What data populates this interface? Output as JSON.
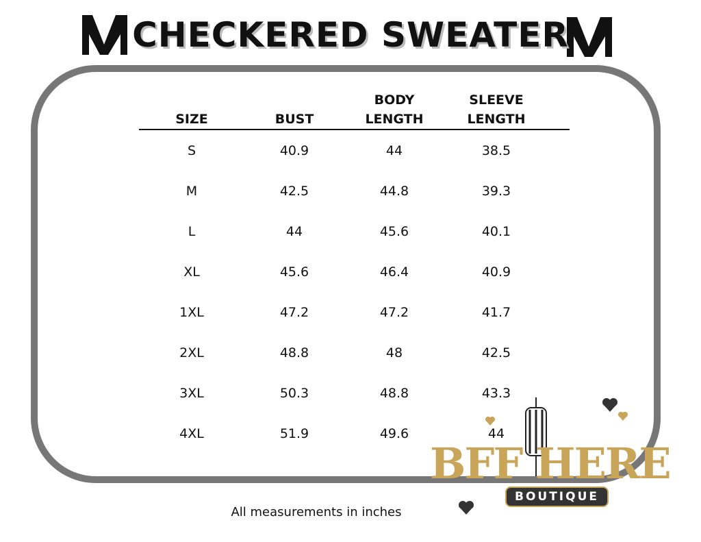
{
  "header": {
    "title": "CHECKERED SWEATER"
  },
  "table": {
    "columns": [
      "SIZE",
      "BUST",
      "BODY LENGTH",
      "SLEEVE LENGTH"
    ],
    "rows": [
      [
        "S",
        "40.9",
        "44",
        "38.5"
      ],
      [
        "M",
        "42.5",
        "44.8",
        "39.3"
      ],
      [
        "L",
        "44",
        "45.6",
        "40.1"
      ],
      [
        "XL",
        "45.6",
        "46.4",
        "40.9"
      ],
      [
        "1XL",
        "47.2",
        "47.2",
        "41.7"
      ],
      [
        "2XL",
        "48.8",
        "48",
        "42.5"
      ],
      [
        "3XL",
        "50.3",
        "48.8",
        "43.3"
      ],
      [
        "4XL",
        "51.9",
        "49.6",
        "44"
      ]
    ]
  },
  "footer": {
    "note": "All measurements in inches"
  },
  "logo": {
    "name": "BFF HERE",
    "tagline": "BOUTIQUE"
  }
}
